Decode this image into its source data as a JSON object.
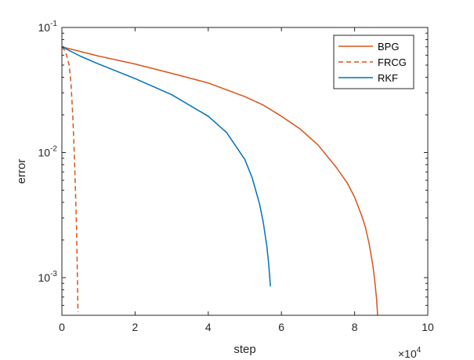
{
  "chart_data": {
    "type": "line",
    "title": "",
    "xlabel": "step",
    "ylabel": "error",
    "x_multiplier_label": "×10",
    "x_multiplier_exponent": "4",
    "xlim": [
      0,
      100000
    ],
    "ylim": [
      0.0005,
      0.1
    ],
    "yscale": "log",
    "x_ticks": [
      0,
      20000,
      40000,
      60000,
      80000,
      100000
    ],
    "x_tick_labels": [
      "0",
      "2",
      "4",
      "6",
      "8",
      "10"
    ],
    "y_ticks": [
      0.001,
      0.01,
      0.1
    ],
    "y_tick_labels": [
      {
        "base": "10",
        "exp": "-3"
      },
      {
        "base": "10",
        "exp": "-2"
      },
      {
        "base": "10",
        "exp": "-1"
      }
    ],
    "grid": false,
    "legend_position": "top-right",
    "series": [
      {
        "name": "BPG",
        "color": "#D95319",
        "dash": "solid",
        "x": [
          0,
          10000,
          20000,
          30000,
          40000,
          50000,
          55000,
          60000,
          65000,
          70000,
          75000,
          78000,
          80000,
          82000,
          83000,
          84000,
          85000,
          85500,
          86000,
          86300
        ],
        "y": [
          0.07,
          0.059,
          0.051,
          0.043,
          0.036,
          0.028,
          0.024,
          0.0195,
          0.0155,
          0.0115,
          0.0076,
          0.0057,
          0.0044,
          0.0031,
          0.0025,
          0.00185,
          0.00125,
          0.00095,
          0.00068,
          0.0005
        ]
      },
      {
        "name": "FRCG",
        "color": "#D95319",
        "dash": "dashed",
        "x": [
          0,
          1000,
          2000,
          2500,
          3000,
          3400,
          3700,
          4000,
          4200,
          4400
        ],
        "y": [
          0.07,
          0.064,
          0.05,
          0.035,
          0.019,
          0.0095,
          0.005,
          0.0025,
          0.0012,
          0.00053
        ]
      },
      {
        "name": "RKF",
        "color": "#0072BD",
        "dash": "solid",
        "x": [
          0,
          5000,
          10000,
          20000,
          30000,
          40000,
          45000,
          50000,
          52000,
          54000,
          55000,
          56000,
          56500,
          57000
        ],
        "y": [
          0.07,
          0.059,
          0.051,
          0.039,
          0.029,
          0.0195,
          0.0145,
          0.0088,
          0.0063,
          0.0039,
          0.0028,
          0.0018,
          0.0013,
          0.00085
        ]
      }
    ]
  }
}
